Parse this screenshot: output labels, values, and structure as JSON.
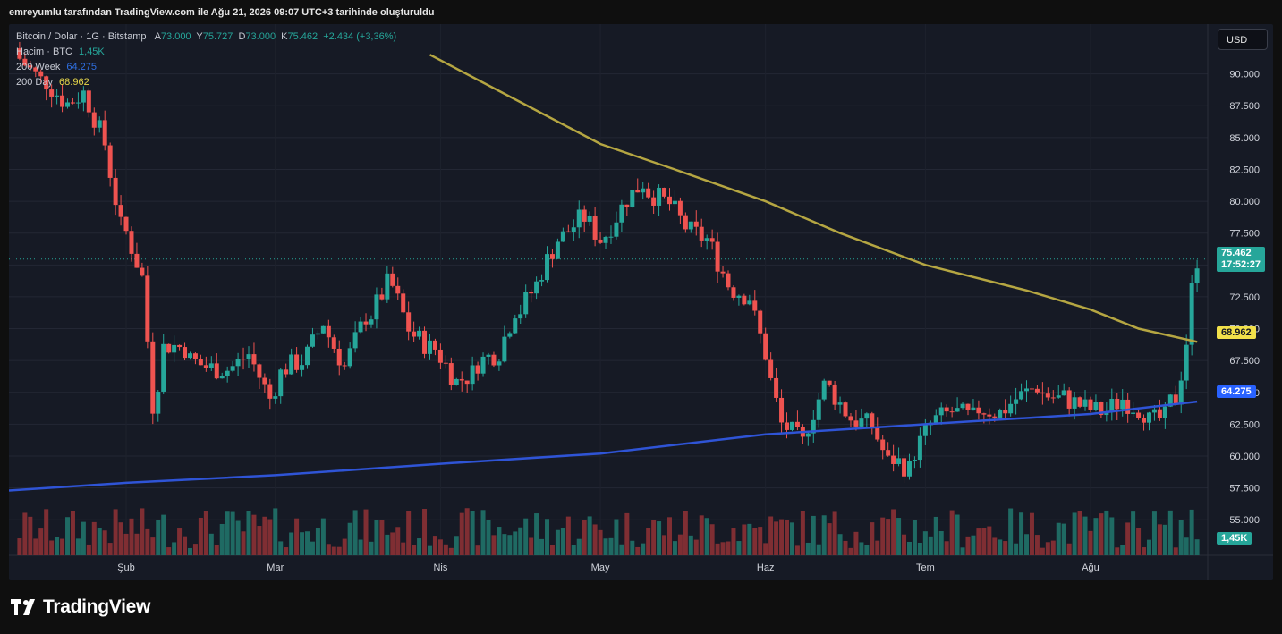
{
  "header": {
    "text": "emreyumlu tarafından TradingView.com ile Ağu 21, 2026 09:07 UTC+3 tarihinde oluşturuldu"
  },
  "legend": {
    "symbol": "Bitcoin / Dolar · 1G · Bitstamp",
    "ohlc": [
      {
        "k": "A",
        "v": "73.000"
      },
      {
        "k": "Y",
        "v": "75.727"
      },
      {
        "k": "D",
        "v": "73.000"
      },
      {
        "k": "K",
        "v": "75.462"
      }
    ],
    "change": "+2.434 (+3,36%)",
    "volume_label": "Hacim · BTC",
    "volume_value": "1,45K",
    "ma200w_label": "200 Week",
    "ma200w_value": "64.275",
    "ma200d_label": "200 Day",
    "ma200d_value": "68.962"
  },
  "currency_button": "USD",
  "brand": "TradingView",
  "colors": {
    "up": "#26a69a",
    "down": "#ef5350",
    "ma200d": "#b5a642",
    "ma200w": "#2f54d6",
    "background": "#161a25",
    "volume_up": "#1f6a63",
    "volume_down": "#7f2e33"
  },
  "price_tags": {
    "last_price": "75.462",
    "countdown": "17:52:27",
    "ma200d": "68.962",
    "ma200w": "64.275",
    "volume": "1,45K"
  },
  "chart_data": {
    "type": "candlestick",
    "ylim": [
      56000,
      92500
    ],
    "y_ticks": [
      "90.000",
      "87.500",
      "85.000",
      "82.500",
      "80.000",
      "77.500",
      "75.000",
      "72.500",
      "70.000",
      "67.500",
      "65.000",
      "62.500",
      "60.000",
      "57.500",
      "55.000"
    ],
    "x_ticks": [
      "Şub",
      "Mar",
      "Nis",
      "May",
      "Haz",
      "Tem",
      "Ağu"
    ],
    "x_tick_dates": [
      "2026-02-01",
      "2026-03-01",
      "2026-04-01",
      "2026-05-01",
      "2026-06-01",
      "2026-07-01",
      "2026-08-01"
    ],
    "x_range": [
      "2026-01-10",
      "2026-08-23"
    ],
    "last_price": 75462,
    "series": [
      {
        "name": "200 Day",
        "color": "#b5a642",
        "values": [
          [
            "2026-03-30",
            91500
          ],
          [
            "2026-04-15",
            88000
          ],
          [
            "2026-05-01",
            84500
          ],
          [
            "2026-05-15",
            82500
          ],
          [
            "2026-06-01",
            80000
          ],
          [
            "2026-06-15",
            77500
          ],
          [
            "2026-07-01",
            75000
          ],
          [
            "2026-07-20",
            73000
          ],
          [
            "2026-08-01",
            71500
          ],
          [
            "2026-08-10",
            70000
          ],
          [
            "2026-08-21",
            68962
          ]
        ]
      },
      {
        "name": "200 Week",
        "color": "#2f54d6",
        "values": [
          [
            "2026-01-10",
            57300
          ],
          [
            "2026-02-01",
            57900
          ],
          [
            "2026-03-01",
            58500
          ],
          [
            "2026-04-01",
            59400
          ],
          [
            "2026-05-01",
            60200
          ],
          [
            "2026-06-01",
            61700
          ],
          [
            "2026-07-01",
            62500
          ],
          [
            "2026-08-01",
            63300
          ],
          [
            "2026-08-21",
            64275
          ]
        ]
      }
    ],
    "candles_close": [
      [
        "2026-01-12",
        91200
      ],
      [
        "2026-01-16",
        89500
      ],
      [
        "2026-01-20",
        88000
      ],
      [
        "2026-01-24",
        88500
      ],
      [
        "2026-01-28",
        84500
      ],
      [
        "2026-01-31",
        78000
      ],
      [
        "2026-02-04",
        74000
      ],
      [
        "2026-02-06",
        64000
      ],
      [
        "2026-02-08",
        68500
      ],
      [
        "2026-02-12",
        68500
      ],
      [
        "2026-02-16",
        67000
      ],
      [
        "2026-02-20",
        66800
      ],
      [
        "2026-02-24",
        68000
      ],
      [
        "2026-02-28",
        64500
      ],
      [
        "2026-03-02",
        66500
      ],
      [
        "2026-03-06",
        67500
      ],
      [
        "2026-03-10",
        70500
      ],
      [
        "2026-03-14",
        67000
      ],
      [
        "2026-03-18",
        71000
      ],
      [
        "2026-03-22",
        73500
      ],
      [
        "2026-03-26",
        70000
      ],
      [
        "2026-03-30",
        68500
      ],
      [
        "2026-04-03",
        66500
      ],
      [
        "2026-04-07",
        66500
      ],
      [
        "2026-04-11",
        68000
      ],
      [
        "2026-04-15",
        71500
      ],
      [
        "2026-04-19",
        73500
      ],
      [
        "2026-04-23",
        77000
      ],
      [
        "2026-04-27",
        78500
      ],
      [
        "2026-05-01",
        77000
      ],
      [
        "2026-05-05",
        79500
      ],
      [
        "2026-05-09",
        81500
      ],
      [
        "2026-05-13",
        80000
      ],
      [
        "2026-05-17",
        78000
      ],
      [
        "2026-05-21",
        77000
      ],
      [
        "2026-05-25",
        73500
      ],
      [
        "2026-05-29",
        72500
      ],
      [
        "2026-06-01",
        68000
      ],
      [
        "2026-06-04",
        62500
      ],
      [
        "2026-06-08",
        61000
      ],
      [
        "2026-06-12",
        65500
      ],
      [
        "2026-06-16",
        63500
      ],
      [
        "2026-06-20",
        62500
      ],
      [
        "2026-06-24",
        59500
      ],
      [
        "2026-06-28",
        59000
      ],
      [
        "2026-07-02",
        62500
      ],
      [
        "2026-07-06",
        63500
      ],
      [
        "2026-07-10",
        63000
      ],
      [
        "2026-07-14",
        63500
      ],
      [
        "2026-07-18",
        64500
      ],
      [
        "2026-07-22",
        65500
      ],
      [
        "2026-07-26",
        64500
      ],
      [
        "2026-07-30",
        64000
      ],
      [
        "2026-08-03",
        63500
      ],
      [
        "2026-08-07",
        64500
      ],
      [
        "2026-08-11",
        63500
      ],
      [
        "2026-08-15",
        63000
      ],
      [
        "2026-08-17",
        64500
      ],
      [
        "2026-08-19",
        69000
      ],
      [
        "2026-08-20",
        73000
      ],
      [
        "2026-08-21",
        75462
      ]
    ]
  }
}
